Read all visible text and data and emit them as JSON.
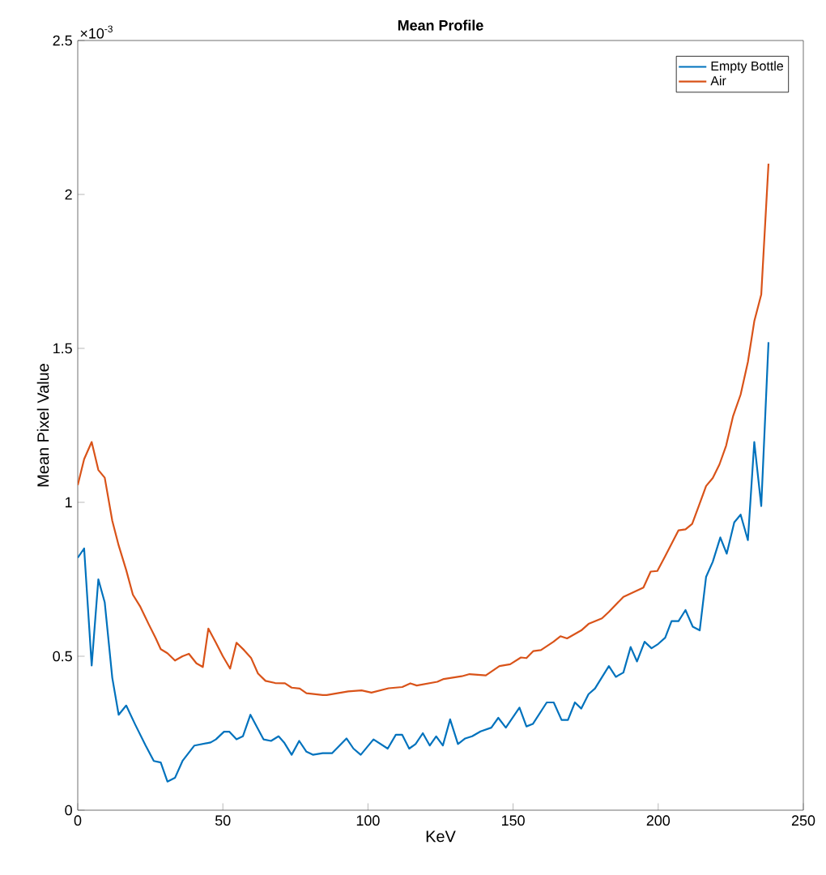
{
  "chart_data": {
    "type": "line",
    "title": "**Mean Profile**",
    "xlabel": "KeV",
    "ylabel": "Mean Pixel Value",
    "annotations": [
      "×10$^{-3}$"
    ],
    "xlim": [
      0,
      250
    ],
    "xticks": [
      0,
      50,
      100,
      150,
      200,
      250
    ],
    "ylim": [
      0,
      2.5
    ],
    "yticks": [
      0,
      0.5,
      1,
      1.5,
      2,
      2.5
    ],
    "legend": "top right",
    "grid": false,
    "marker": "none",
    "line_style": "solid",
    "series": [
      {
        "name": "Empty Bottle",
        "color": "#0072bd",
        "x": [
          0,
          2.2,
          4.8,
          7.1,
          9.3,
          11.9,
          14.1,
          16.7,
          19.7,
          23.4,
          26.2,
          28.6,
          30.9,
          33.5,
          36.1,
          40.2,
          45.8,
          47.6,
          50.4,
          52.2,
          54.7,
          56.9,
          59.5,
          64,
          66.6,
          69.2,
          71.1,
          73.7,
          76.3,
          78.8,
          81,
          84.4,
          87.6,
          92.6,
          95,
          97.5,
          101.9,
          106.8,
          109.6,
          111.8,
          114.2,
          116.4,
          118.9,
          121.3,
          123.5,
          125.8,
          128.3,
          131,
          133.5,
          135.9,
          138.8,
          142.5,
          144.9,
          147.5,
          152.2,
          154.6,
          156.8,
          161.6,
          164,
          166.7,
          168.9,
          171.3,
          173.5,
          176,
          178.2,
          183,
          185.4,
          188,
          190.5,
          192.7,
          195.3,
          197.7,
          200,
          202.4,
          204.6,
          207,
          209.4,
          211.9,
          214.3,
          216.5,
          218.8,
          221.4,
          223.6,
          226.2,
          228.4,
          230.9,
          233.1,
          235.5,
          238
        ],
        "values": [
          0.82,
          0.85,
          0.47,
          0.75,
          0.675,
          0.43,
          0.31,
          0.34,
          0.28,
          0.21,
          0.16,
          0.155,
          0.093,
          0.105,
          0.16,
          0.21,
          0.22,
          0.23,
          0.255,
          0.255,
          0.23,
          0.24,
          0.31,
          0.23,
          0.225,
          0.24,
          0.22,
          0.18,
          0.225,
          0.19,
          0.18,
          0.185,
          0.185,
          0.233,
          0.2,
          0.18,
          0.23,
          0.2,
          0.245,
          0.245,
          0.2,
          0.215,
          0.25,
          0.21,
          0.24,
          0.21,
          0.295,
          0.215,
          0.233,
          0.24,
          0.256,
          0.268,
          0.3,
          0.268,
          0.333,
          0.272,
          0.28,
          0.35,
          0.35,
          0.293,
          0.293,
          0.35,
          0.33,
          0.377,
          0.395,
          0.468,
          0.433,
          0.447,
          0.53,
          0.483,
          0.547,
          0.526,
          0.54,
          0.56,
          0.614,
          0.614,
          0.65,
          0.596,
          0.584,
          0.758,
          0.807,
          0.886,
          0.833,
          0.935,
          0.96,
          0.877,
          1.196,
          0.988,
          1.52
        ]
      },
      {
        "name": "Air",
        "color": "#d95319",
        "x": [
          0,
          2.2,
          4.8,
          7.1,
          9.3,
          11.9,
          14.1,
          16.7,
          19,
          21.6,
          24.4,
          26.8,
          28.6,
          30.9,
          33.5,
          36.1,
          38.3,
          40.9,
          43.1,
          45,
          47.6,
          50,
          52.5,
          54.7,
          57.3,
          59.7,
          62.1,
          64.7,
          68,
          71.4,
          73.7,
          76.5,
          78.8,
          84.4,
          85.8,
          93.2,
          97.8,
          101.2,
          107.1,
          111.8,
          114.6,
          116.8,
          123.9,
          126.1,
          132.3,
          135,
          140.6,
          145.3,
          149,
          152.7,
          154.6,
          157,
          159.6,
          163.9,
          166.3,
          168.6,
          173.5,
          176,
          180.6,
          183,
          188,
          194.9,
          197.4,
          199.7,
          202.4,
          207,
          209.4,
          211.7,
          214.1,
          216.5,
          218.8,
          221.1,
          223.4,
          225.8,
          228.4,
          230.9,
          233.1,
          235.5,
          238
        ],
        "values": [
          1.056,
          1.14,
          1.196,
          1.105,
          1.08,
          0.94,
          0.86,
          0.78,
          0.7,
          0.66,
          0.605,
          0.56,
          0.523,
          0.51,
          0.486,
          0.5,
          0.508,
          0.477,
          0.465,
          0.59,
          0.544,
          0.5,
          0.46,
          0.544,
          0.52,
          0.495,
          0.444,
          0.42,
          0.413,
          0.412,
          0.398,
          0.395,
          0.38,
          0.374,
          0.374,
          0.386,
          0.389,
          0.382,
          0.396,
          0.4,
          0.412,
          0.405,
          0.417,
          0.426,
          0.435,
          0.442,
          0.438,
          0.468,
          0.474,
          0.496,
          0.494,
          0.517,
          0.52,
          0.547,
          0.565,
          0.558,
          0.584,
          0.605,
          0.623,
          0.644,
          0.693,
          0.723,
          0.775,
          0.777,
          0.825,
          0.909,
          0.912,
          0.93,
          0.991,
          1.053,
          1.079,
          1.123,
          1.184,
          1.28,
          1.35,
          1.456,
          1.588,
          1.675,
          2.1
        ]
      }
    ]
  }
}
